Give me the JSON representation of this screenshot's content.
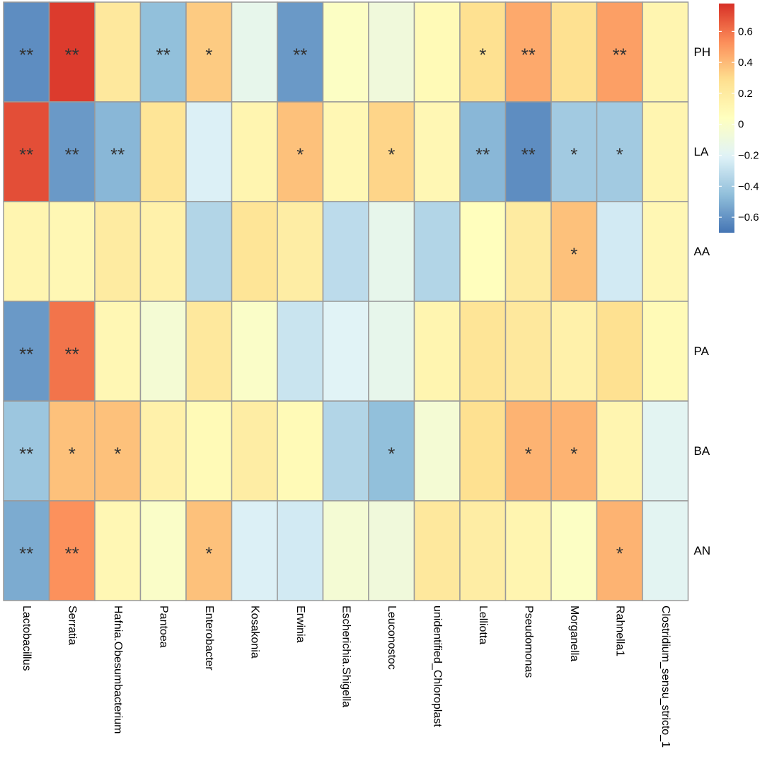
{
  "chart_data": {
    "type": "heatmap",
    "title": "",
    "columns": [
      "Lactobacillus",
      "Serratia",
      "Hafnia.Obesumbacterium",
      "Pantoea",
      "Enterobacter",
      "Kosakonia",
      "Erwinia",
      "Escherichia.Shigella",
      "Leuconostoc",
      "unidentified_Chloroplast",
      "Lelliotta",
      "Pseudomonas",
      "Morganella",
      "Rahnella1",
      "Clostridium_sensu_stricto_1"
    ],
    "rows": [
      "PH",
      "LA",
      "AA",
      "PA",
      "BA",
      "AN"
    ],
    "values": [
      [
        -0.62,
        0.75,
        0.22,
        -0.45,
        0.35,
        -0.15,
        -0.58,
        0.02,
        -0.08,
        0.08,
        0.28,
        0.45,
        0.28,
        0.48,
        0.12
      ],
      [
        0.7,
        -0.58,
        -0.48,
        0.25,
        -0.22,
        0.12,
        0.38,
        0.1,
        0.32,
        0.1,
        -0.48,
        -0.62,
        -0.4,
        -0.4,
        0.12
      ],
      [
        0.12,
        0.1,
        0.2,
        0.15,
        -0.35,
        0.25,
        0.18,
        -0.32,
        -0.15,
        -0.35,
        0.05,
        0.2,
        0.38,
        -0.25,
        0.1
      ],
      [
        -0.58,
        0.6,
        0.1,
        -0.05,
        0.22,
        0.0,
        -0.28,
        -0.2,
        -0.15,
        0.12,
        0.25,
        0.22,
        0.15,
        0.28,
        0.08
      ],
      [
        -0.42,
        0.38,
        0.38,
        0.15,
        0.08,
        0.18,
        0.08,
        -0.35,
        -0.45,
        -0.05,
        0.28,
        0.42,
        0.42,
        0.12,
        -0.18
      ],
      [
        -0.52,
        0.52,
        0.1,
        0.0,
        0.38,
        -0.22,
        -0.25,
        -0.05,
        -0.08,
        0.22,
        0.18,
        0.12,
        0.02,
        0.42,
        -0.18
      ]
    ],
    "significance": [
      [
        "**",
        "**",
        "",
        "**",
        "*",
        "",
        "**",
        "",
        "",
        "",
        "*",
        "**",
        "",
        "**",
        ""
      ],
      [
        "**",
        "**",
        "**",
        "",
        "",
        "",
        "*",
        "",
        "*",
        "",
        "**",
        "**",
        "*",
        "*",
        ""
      ],
      [
        "",
        "",
        "",
        "",
        "",
        "",
        "",
        "",
        "",
        "",
        "",
        "",
        "*",
        "",
        ""
      ],
      [
        "**",
        "**",
        "",
        "",
        "",
        "",
        "",
        "",
        "",
        "",
        "",
        "",
        "",
        "",
        ""
      ],
      [
        "**",
        "*",
        "*",
        "",
        "",
        "",
        "",
        "",
        "*",
        "",
        "",
        "*",
        "*",
        "",
        ""
      ],
      [
        "**",
        "**",
        "",
        "",
        "*",
        "",
        "",
        "",
        "",
        "",
        "",
        "",
        "",
        "*",
        ""
      ]
    ],
    "colorbar": {
      "min": -0.7,
      "max": 0.78,
      "ticks": [
        -0.6,
        -0.4,
        -0.2,
        0,
        0.2,
        0.4,
        0.6
      ],
      "tick_labels": [
        "−0.6",
        "−0.4",
        "−0.2",
        "0",
        "0.2",
        "0.4",
        "0.6"
      ],
      "colors": [
        "#4575b4",
        "#91bfdb",
        "#e0f3f8",
        "#ffffbf",
        "#fee090",
        "#fc8d59",
        "#d73027"
      ]
    },
    "grid_color": "#999999"
  }
}
